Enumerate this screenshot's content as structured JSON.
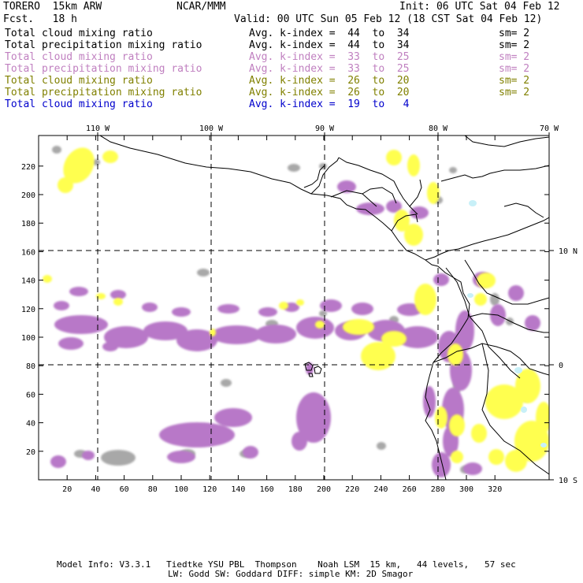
{
  "header": {
    "model": "TORERO  15km ARW",
    "center": "NCAR/MMM",
    "init": "Init: 06 UTC Sat 04 Feb 12",
    "fcst": "Fcst.   18 h",
    "valid": "Valid: 00 UTC Sun 05 Feb 12 (18 CST Sat 04 Feb 12)"
  },
  "legend": [
    {
      "name": "Total cloud mixing ratio",
      "kindex": "Avg. k-index =  44  to  34",
      "sm": "sm= 2",
      "color": "#000000"
    },
    {
      "name": "Total precipitation mixing ratio",
      "kindex": "Avg. k-index =  44  to  34",
      "sm": "sm= 2",
      "color": "#000000"
    },
    {
      "name": "Total cloud mixing ratio",
      "kindex": "Avg. k-index =  33  to  25",
      "sm": "sm= 2",
      "color": "#c080c0"
    },
    {
      "name": "Total precipitation mixing ratio",
      "kindex": "Avg. k-index =  33  to  25",
      "sm": "sm= 2",
      "color": "#c080c0"
    },
    {
      "name": "Total cloud mixing ratio",
      "kindex": "Avg. k-index =  26  to  20",
      "sm": "sm= 2",
      "color": "#808000"
    },
    {
      "name": "Total precipitation mixing ratio",
      "kindex": "Avg. k-index =  26  to  20",
      "sm": "sm= 2",
      "color": "#808000"
    },
    {
      "name": "Total cloud mixing ratio",
      "kindex": "Avg. k-index =  19  to   4",
      "sm": "",
      "color": "#0000cc"
    }
  ],
  "axes": {
    "longitude_labels": [
      "110 W",
      "100 W",
      "90 W",
      "80 W",
      "70 W"
    ],
    "latitude_labels": [
      "10 N",
      "0",
      "10 S"
    ],
    "y_ticks": [
      "20",
      "40",
      "60",
      "80",
      "100",
      "120",
      "140",
      "160",
      "180",
      "200",
      "220"
    ],
    "x_ticks": [
      "20",
      "40",
      "60",
      "80",
      "100",
      "120",
      "140",
      "160",
      "180",
      "200",
      "220",
      "240",
      "260",
      "280",
      "300",
      "320"
    ]
  },
  "colors": {
    "purple": "#b878c8",
    "yellow": "#ffff50",
    "gray": "#a8a8a8",
    "cyan": "#c8f0f8"
  },
  "footer": {
    "line1": "Model Info: V3.3.1   Tiedtke YSU PBL  Thompson    Noah LSM  15 km,   44 levels,   57 sec",
    "line2": "LW: Godd SW: Goddard DIFF: simple KM: 2D Smagor"
  }
}
